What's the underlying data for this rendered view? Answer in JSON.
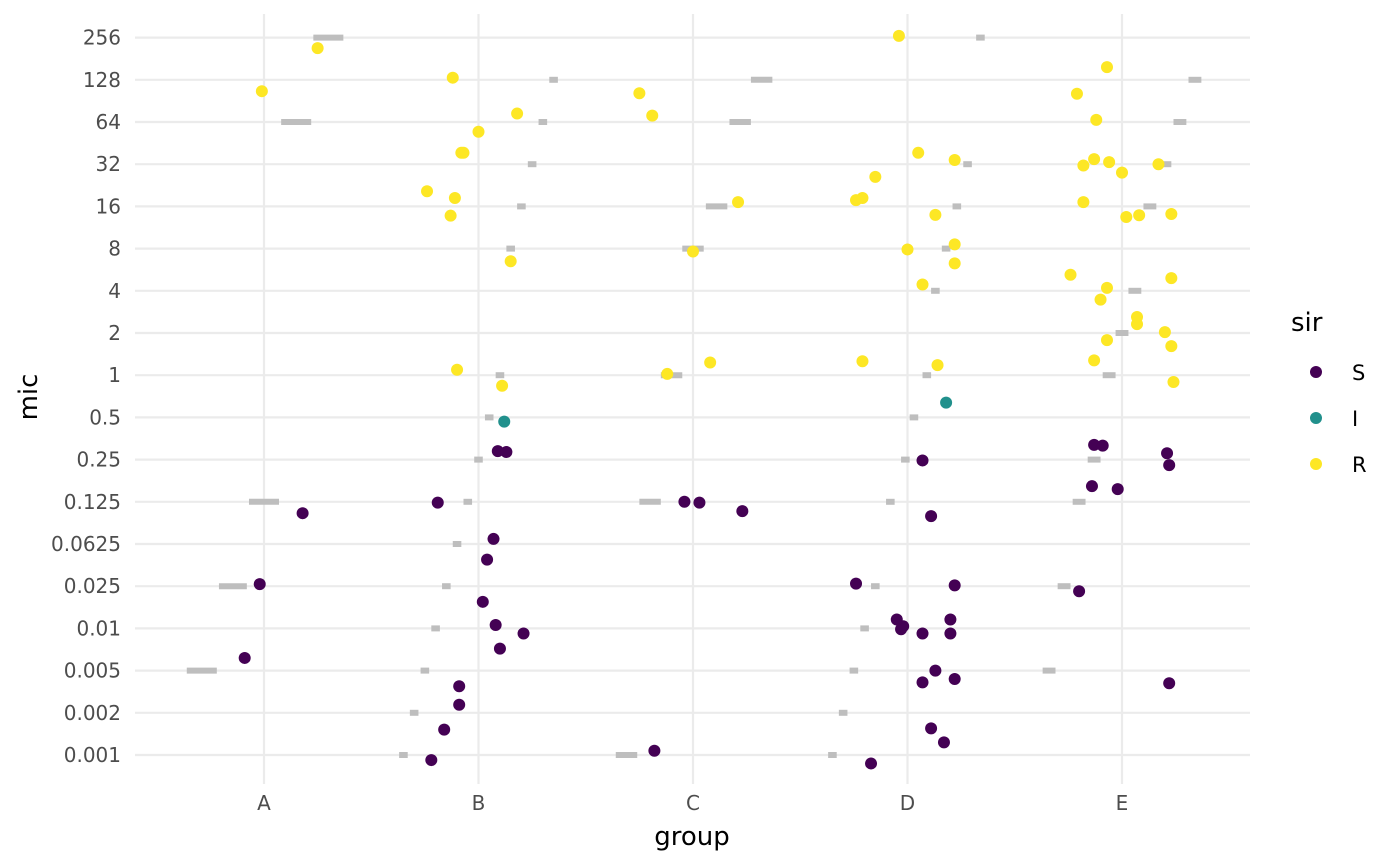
{
  "chart_data": {
    "type": "scatter",
    "xlabel": "group",
    "ylabel": "mic",
    "categories": [
      "A",
      "B",
      "C",
      "D",
      "E"
    ],
    "y_scale": "ordinal-log",
    "y_ticks": [
      "0.001",
      "0.002",
      "0.005",
      "0.01",
      "0.025",
      "0.0625",
      "0.125",
      "0.25",
      "0.5",
      "1",
      "2",
      "4",
      "8",
      "16",
      "32",
      "64",
      "128",
      "256"
    ],
    "grid": true,
    "legend": {
      "title": "sir",
      "placement": "right",
      "entries": [
        {
          "label": "S",
          "color": "#440154"
        },
        {
          "label": "I",
          "color": "#21908C"
        },
        {
          "label": "R",
          "color": "#FDE725"
        }
      ]
    },
    "reference_segments": {
      "color": "#bebebe",
      "A": [
        [
          "0.005",
          -0.36,
          -0.22
        ],
        [
          "0.025",
          -0.21,
          -0.08
        ],
        [
          "0.125",
          -0.07,
          0.07
        ],
        [
          "64",
          0.08,
          0.22
        ],
        [
          "256",
          0.23,
          0.37
        ]
      ],
      "B": [
        [
          "0.001",
          -0.37,
          -0.33
        ],
        [
          "0.002",
          -0.32,
          -0.28
        ],
        [
          "0.005",
          -0.27,
          -0.23
        ],
        [
          "0.01",
          -0.22,
          -0.18
        ],
        [
          "0.025",
          -0.17,
          -0.13
        ],
        [
          "0.0625",
          -0.12,
          -0.08
        ],
        [
          "0.125",
          -0.07,
          -0.03
        ],
        [
          "0.25",
          -0.02,
          0.02
        ],
        [
          "0.5",
          0.03,
          0.07
        ],
        [
          "1",
          0.08,
          0.12
        ],
        [
          "8",
          0.13,
          0.17
        ],
        [
          "16",
          0.18,
          0.22
        ],
        [
          "32",
          0.23,
          0.27
        ],
        [
          "64",
          0.28,
          0.32
        ],
        [
          "128",
          0.33,
          0.37
        ]
      ],
      "C": [
        [
          "0.001",
          -0.36,
          -0.26
        ],
        [
          "0.125",
          -0.25,
          -0.15
        ],
        [
          "1",
          -0.15,
          -0.05
        ],
        [
          "8",
          -0.05,
          0.05
        ],
        [
          "16",
          0.06,
          0.16
        ],
        [
          "64",
          0.17,
          0.27
        ],
        [
          "128",
          0.27,
          0.37
        ]
      ],
      "D": [
        [
          "0.001",
          -0.37,
          -0.33
        ],
        [
          "0.002",
          -0.32,
          -0.28
        ],
        [
          "0.005",
          -0.27,
          -0.23
        ],
        [
          "0.01",
          -0.22,
          -0.18
        ],
        [
          "0.025",
          -0.17,
          -0.13
        ],
        [
          "0.125",
          -0.1,
          -0.06
        ],
        [
          "0.25",
          -0.03,
          0.01
        ],
        [
          "0.5",
          0.01,
          0.05
        ],
        [
          "1",
          0.07,
          0.11
        ],
        [
          "4",
          0.11,
          0.15
        ],
        [
          "8",
          0.16,
          0.2
        ],
        [
          "16",
          0.21,
          0.25
        ],
        [
          "32",
          0.26,
          0.3
        ],
        [
          "256",
          0.32,
          0.36
        ]
      ],
      "E": [
        [
          "0.005",
          -0.37,
          -0.31
        ],
        [
          "0.025",
          -0.3,
          -0.24
        ],
        [
          "0.125",
          -0.23,
          -0.17
        ],
        [
          "0.25",
          -0.16,
          -0.1
        ],
        [
          "1",
          -0.09,
          -0.03
        ],
        [
          "2",
          -0.03,
          0.03
        ],
        [
          "4",
          0.03,
          0.09
        ],
        [
          "16",
          0.1,
          0.16
        ],
        [
          "32",
          0.17,
          0.23
        ],
        [
          "64",
          0.24,
          0.3
        ],
        [
          "128",
          0.31,
          0.37
        ]
      ]
    },
    "points": [
      {
        "group": "A",
        "jitter": -0.09,
        "level": 2.3,
        "sir": "S"
      },
      {
        "group": "A",
        "jitter": -0.02,
        "level": 4.05,
        "sir": "S"
      },
      {
        "group": "A",
        "jitter": 0.18,
        "level": 5.73,
        "sir": "S"
      },
      {
        "group": "A",
        "jitter": -0.01,
        "level": 15.73,
        "sir": "R"
      },
      {
        "group": "A",
        "jitter": 0.25,
        "level": 16.75,
        "sir": "R"
      },
      {
        "group": "B",
        "jitter": -0.22,
        "level": -0.12,
        "sir": "S"
      },
      {
        "group": "B",
        "jitter": -0.16,
        "level": 0.6,
        "sir": "S"
      },
      {
        "group": "B",
        "jitter": -0.09,
        "level": 1.19,
        "sir": "S"
      },
      {
        "group": "B",
        "jitter": -0.09,
        "level": 1.63,
        "sir": "S"
      },
      {
        "group": "B",
        "jitter": 0.1,
        "level": 2.52,
        "sir": "S"
      },
      {
        "group": "B",
        "jitter": 0.21,
        "level": 2.88,
        "sir": "S"
      },
      {
        "group": "B",
        "jitter": 0.08,
        "level": 3.08,
        "sir": "S"
      },
      {
        "group": "B",
        "jitter": 0.02,
        "level": 3.63,
        "sir": "S"
      },
      {
        "group": "B",
        "jitter": 0.04,
        "level": 4.63,
        "sir": "S"
      },
      {
        "group": "B",
        "jitter": 0.07,
        "level": 5.12,
        "sir": "S"
      },
      {
        "group": "B",
        "jitter": -0.19,
        "level": 5.98,
        "sir": "S"
      },
      {
        "group": "B",
        "jitter": 0.09,
        "level": 7.2,
        "sir": "S"
      },
      {
        "group": "B",
        "jitter": 0.13,
        "level": 7.18,
        "sir": "S"
      },
      {
        "group": "B",
        "jitter": 0.12,
        "level": 7.9,
        "sir": "I"
      },
      {
        "group": "B",
        "jitter": 0.11,
        "level": 8.75,
        "sir": "R"
      },
      {
        "group": "B",
        "jitter": -0.1,
        "level": 9.13,
        "sir": "R"
      },
      {
        "group": "B",
        "jitter": 0.15,
        "level": 11.7,
        "sir": "R"
      },
      {
        "group": "B",
        "jitter": -0.13,
        "level": 12.78,
        "sir": "R"
      },
      {
        "group": "B",
        "jitter": -0.24,
        "level": 13.36,
        "sir": "R"
      },
      {
        "group": "B",
        "jitter": -0.11,
        "level": 13.2,
        "sir": "R"
      },
      {
        "group": "B",
        "jitter": -0.08,
        "level": 14.27,
        "sir": "R"
      },
      {
        "group": "B",
        "jitter": -0.07,
        "level": 14.27,
        "sir": "R"
      },
      {
        "group": "B",
        "jitter": 0.0,
        "level": 14.77,
        "sir": "R"
      },
      {
        "group": "B",
        "jitter": 0.18,
        "level": 15.2,
        "sir": "R"
      },
      {
        "group": "B",
        "jitter": -0.12,
        "level": 16.05,
        "sir": "R"
      },
      {
        "group": "C",
        "jitter": -0.18,
        "level": 0.1,
        "sir": "S"
      },
      {
        "group": "C",
        "jitter": -0.04,
        "level": 6.0,
        "sir": "S"
      },
      {
        "group": "C",
        "jitter": 0.03,
        "level": 5.98,
        "sir": "S"
      },
      {
        "group": "C",
        "jitter": 0.23,
        "level": 5.78,
        "sir": "S"
      },
      {
        "group": "C",
        "jitter": -0.12,
        "level": 9.03,
        "sir": "R"
      },
      {
        "group": "C",
        "jitter": 0.08,
        "level": 9.3,
        "sir": "R"
      },
      {
        "group": "C",
        "jitter": 0.0,
        "level": 11.93,
        "sir": "R"
      },
      {
        "group": "C",
        "jitter": 0.21,
        "level": 13.1,
        "sir": "R"
      },
      {
        "group": "C",
        "jitter": -0.25,
        "level": 15.68,
        "sir": "R"
      },
      {
        "group": "C",
        "jitter": -0.19,
        "level": 15.15,
        "sir": "R"
      },
      {
        "group": "D",
        "jitter": -0.17,
        "level": -0.2,
        "sir": "S"
      },
      {
        "group": "D",
        "jitter": 0.17,
        "level": 0.3,
        "sir": "S"
      },
      {
        "group": "D",
        "jitter": 0.11,
        "level": 0.63,
        "sir": "S"
      },
      {
        "group": "D",
        "jitter": 0.07,
        "level": 1.72,
        "sir": "S"
      },
      {
        "group": "D",
        "jitter": 0.22,
        "level": 1.8,
        "sir": "S"
      },
      {
        "group": "D",
        "jitter": 0.13,
        "level": 2.0,
        "sir": "S"
      },
      {
        "group": "D",
        "jitter": -0.03,
        "level": 2.98,
        "sir": "S"
      },
      {
        "group": "D",
        "jitter": -0.02,
        "level": 3.05,
        "sir": "S"
      },
      {
        "group": "D",
        "jitter": 0.07,
        "level": 2.88,
        "sir": "S"
      },
      {
        "group": "D",
        "jitter": 0.2,
        "level": 2.88,
        "sir": "S"
      },
      {
        "group": "D",
        "jitter": -0.05,
        "level": 3.21,
        "sir": "S"
      },
      {
        "group": "D",
        "jitter": 0.2,
        "level": 3.21,
        "sir": "S"
      },
      {
        "group": "D",
        "jitter": -0.24,
        "level": 4.06,
        "sir": "S"
      },
      {
        "group": "D",
        "jitter": 0.22,
        "level": 4.02,
        "sir": "S"
      },
      {
        "group": "D",
        "jitter": 0.11,
        "level": 5.66,
        "sir": "S"
      },
      {
        "group": "D",
        "jitter": 0.07,
        "level": 6.98,
        "sir": "S"
      },
      {
        "group": "D",
        "jitter": 0.18,
        "level": 8.35,
        "sir": "I"
      },
      {
        "group": "D",
        "jitter": -0.21,
        "level": 9.33,
        "sir": "R"
      },
      {
        "group": "D",
        "jitter": 0.14,
        "level": 9.24,
        "sir": "R"
      },
      {
        "group": "D",
        "jitter": 0.07,
        "level": 11.15,
        "sir": "R"
      },
      {
        "group": "D",
        "jitter": 0.22,
        "level": 11.65,
        "sir": "R"
      },
      {
        "group": "D",
        "jitter": 0.0,
        "level": 11.98,
        "sir": "R"
      },
      {
        "group": "D",
        "jitter": 0.22,
        "level": 12.1,
        "sir": "R"
      },
      {
        "group": "D",
        "jitter": 0.13,
        "level": 12.8,
        "sir": "R"
      },
      {
        "group": "D",
        "jitter": -0.24,
        "level": 13.15,
        "sir": "R"
      },
      {
        "group": "D",
        "jitter": -0.21,
        "level": 13.2,
        "sir": "R"
      },
      {
        "group": "D",
        "jitter": -0.15,
        "level": 13.7,
        "sir": "R"
      },
      {
        "group": "D",
        "jitter": 0.22,
        "level": 14.1,
        "sir": "R"
      },
      {
        "group": "D",
        "jitter": 0.05,
        "level": 14.27,
        "sir": "R"
      },
      {
        "group": "D",
        "jitter": -0.04,
        "level": 17.04,
        "sir": "R"
      },
      {
        "group": "E",
        "jitter": 0.22,
        "level": 1.7,
        "sir": "S"
      },
      {
        "group": "E",
        "jitter": -0.2,
        "level": 3.88,
        "sir": "S"
      },
      {
        "group": "E",
        "jitter": -0.14,
        "level": 6.37,
        "sir": "S"
      },
      {
        "group": "E",
        "jitter": -0.02,
        "level": 6.3,
        "sir": "S"
      },
      {
        "group": "E",
        "jitter": 0.22,
        "level": 6.87,
        "sir": "S"
      },
      {
        "group": "E",
        "jitter": 0.21,
        "level": 7.15,
        "sir": "S"
      },
      {
        "group": "E",
        "jitter": -0.13,
        "level": 7.35,
        "sir": "S"
      },
      {
        "group": "E",
        "jitter": -0.09,
        "level": 7.33,
        "sir": "S"
      },
      {
        "group": "E",
        "jitter": 0.24,
        "level": 8.84,
        "sir": "R"
      },
      {
        "group": "E",
        "jitter": 0.23,
        "level": 9.69,
        "sir": "R"
      },
      {
        "group": "E",
        "jitter": -0.13,
        "level": 9.35,
        "sir": "R"
      },
      {
        "group": "E",
        "jitter": -0.07,
        "level": 9.83,
        "sir": "R"
      },
      {
        "group": "E",
        "jitter": 0.2,
        "level": 10.02,
        "sir": "R"
      },
      {
        "group": "E",
        "jitter": 0.07,
        "level": 10.21,
        "sir": "R"
      },
      {
        "group": "E",
        "jitter": 0.07,
        "level": 10.38,
        "sir": "R"
      },
      {
        "group": "E",
        "jitter": -0.1,
        "level": 10.79,
        "sir": "R"
      },
      {
        "group": "E",
        "jitter": -0.07,
        "level": 11.07,
        "sir": "R"
      },
      {
        "group": "E",
        "jitter": 0.23,
        "level": 11.3,
        "sir": "R"
      },
      {
        "group": "E",
        "jitter": -0.24,
        "level": 11.38,
        "sir": "R"
      },
      {
        "group": "E",
        "jitter": 0.23,
        "level": 12.82,
        "sir": "R"
      },
      {
        "group": "E",
        "jitter": 0.02,
        "level": 12.75,
        "sir": "R"
      },
      {
        "group": "E",
        "jitter": 0.08,
        "level": 12.79,
        "sir": "R"
      },
      {
        "group": "E",
        "jitter": -0.18,
        "level": 13.1,
        "sir": "R"
      },
      {
        "group": "E",
        "jitter": 0.0,
        "level": 13.8,
        "sir": "R"
      },
      {
        "group": "E",
        "jitter": -0.18,
        "level": 13.97,
        "sir": "R"
      },
      {
        "group": "E",
        "jitter": -0.06,
        "level": 14.05,
        "sir": "R"
      },
      {
        "group": "E",
        "jitter": 0.17,
        "level": 14.0,
        "sir": "R"
      },
      {
        "group": "E",
        "jitter": -0.13,
        "level": 14.12,
        "sir": "R"
      },
      {
        "group": "E",
        "jitter": -0.12,
        "level": 15.05,
        "sir": "R"
      },
      {
        "group": "E",
        "jitter": -0.21,
        "level": 15.67,
        "sir": "R"
      },
      {
        "group": "E",
        "jitter": -0.07,
        "level": 16.3,
        "sir": "R"
      }
    ]
  }
}
